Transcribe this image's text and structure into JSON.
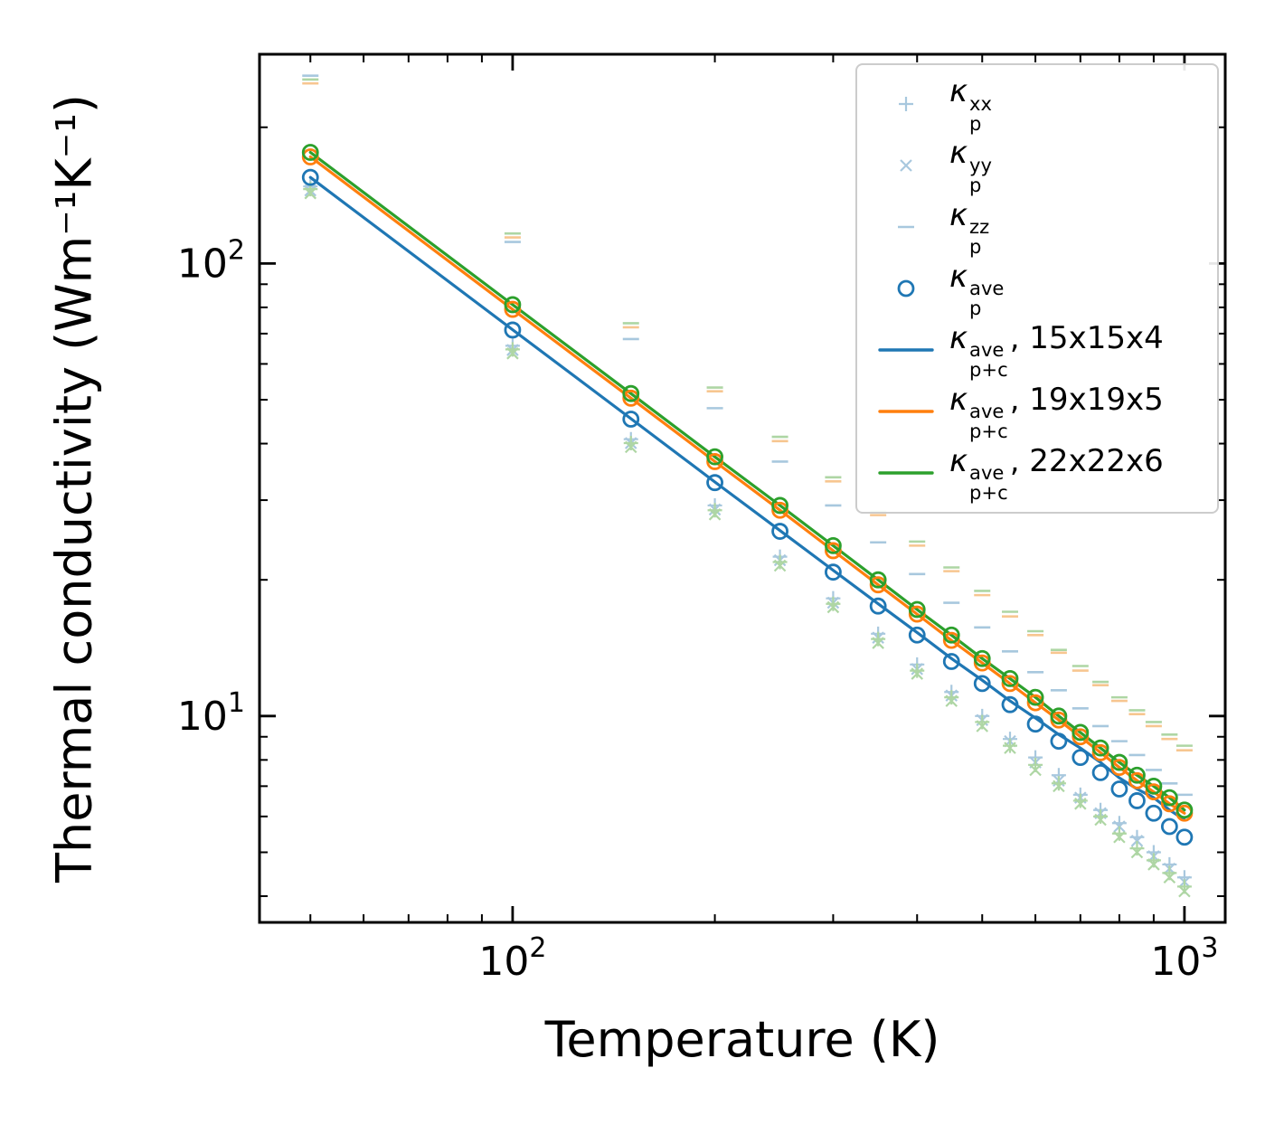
{
  "chart_data": {
    "type": "line",
    "title": "",
    "xlabel": "Temperature (K)",
    "ylabel": "Thermal conductivity (Wm⁻¹K⁻¹)",
    "xscale": "log",
    "yscale": "log",
    "xlim": [
      42,
      1150
    ],
    "ylim": [
      3.5,
      290
    ],
    "grid": false,
    "legend_position": "upper right",
    "x_major_ticks": [
      {
        "value": 100,
        "mantissa": "10",
        "exponent": "2"
      },
      {
        "value": 1000,
        "mantissa": "10",
        "exponent": "3"
      }
    ],
    "x_minor_ticks": [
      50,
      60,
      70,
      80,
      90,
      200,
      300,
      400,
      500,
      600,
      700,
      800,
      900
    ],
    "y_major_ticks": [
      {
        "value": 10,
        "mantissa": "10",
        "exponent": "1"
      },
      {
        "value": 100,
        "mantissa": "10",
        "exponent": "2"
      }
    ],
    "y_minor_ticks": [
      4,
      5,
      6,
      7,
      8,
      9,
      20,
      30,
      40,
      50,
      60,
      70,
      80,
      90,
      200
    ],
    "temperatures": [
      50,
      100,
      150,
      200,
      250,
      300,
      350,
      400,
      450,
      500,
      550,
      600,
      650,
      700,
      750,
      800,
      850,
      900,
      950,
      1000
    ],
    "series": [
      {
        "name": "kappa-zz-15x15x4",
        "marker": "dash",
        "color": "#a8c8de",
        "values": [
          260,
          111.6,
          68.1,
          47.9,
          36.5,
          29.2,
          24.2,
          20.6,
          17.8,
          15.7,
          13.9,
          12.5,
          11.4,
          10.4,
          9.5,
          8.8,
          8.2,
          7.6,
          7.1,
          6.7
        ]
      },
      {
        "name": "kappa-zz-19x19x5",
        "marker": "dash",
        "color": "#f7c690",
        "values": [
          250,
          114.2,
          72.3,
          52.2,
          40.5,
          33.0,
          27.8,
          23.8,
          20.9,
          18.5,
          16.6,
          15.1,
          13.8,
          12.6,
          11.7,
          10.8,
          10.1,
          9.5,
          8.9,
          8.4
        ]
      },
      {
        "name": "kappa-zz-22x22x6",
        "marker": "dash",
        "color": "#aed6a4",
        "values": [
          255,
          116.5,
          73.8,
          53.2,
          41.4,
          33.7,
          28.3,
          24.3,
          21.3,
          18.9,
          17.0,
          15.4,
          14.0,
          12.9,
          11.9,
          11.0,
          10.3,
          9.7,
          9.1,
          8.6
        ]
      },
      {
        "name": "kappa-xx-15x15x4",
        "marker": "plus",
        "color": "#a8c8de",
        "values": [
          148,
          65.8,
          40.9,
          29.2,
          22.5,
          18.2,
          15.2,
          13.0,
          11.3,
          10.0,
          8.9,
          8.1,
          7.4,
          6.7,
          6.2,
          5.8,
          5.4,
          5.0,
          4.7,
          4.4
        ]
      },
      {
        "name": "kappa-yy-15x15x4",
        "marker": "cross",
        "color": "#a8c8de",
        "values": [
          145,
          64.4,
          40.1,
          28.6,
          22.1,
          17.8,
          14.9,
          12.7,
          11.1,
          9.8,
          8.8,
          7.9,
          7.2,
          6.6,
          6.1,
          5.7,
          5.3,
          4.9,
          4.6,
          4.3
        ]
      },
      {
        "name": "kappa-xx-22x22x6",
        "marker": "plus",
        "color": "#aed6a4",
        "values": [
          146,
          64.6,
          40.1,
          28.5,
          21.9,
          17.7,
          14.8,
          12.6,
          11.0,
          9.7,
          8.6,
          7.8,
          7.1,
          6.5,
          6.0,
          5.5,
          5.1,
          4.8,
          4.5,
          4.2
        ]
      },
      {
        "name": "kappa-yy-22x22x6",
        "marker": "cross",
        "color": "#aed6a4",
        "values": [
          143,
          63.3,
          39.3,
          27.9,
          21.5,
          17.4,
          14.5,
          12.4,
          10.8,
          9.5,
          8.5,
          7.6,
          7.0,
          6.4,
          5.9,
          5.4,
          5.0,
          4.7,
          4.4,
          4.1
        ]
      },
      {
        "name": "kappa-p-plus-c-ave-15x15x4",
        "marker": "line",
        "color": "#1f77b4",
        "values": [
          155.0,
          71.4,
          45.4,
          32.9,
          25.7,
          21.0,
          17.7,
          15.3,
          13.4,
          12.0,
          10.8,
          9.9,
          9.1,
          8.5,
          7.9,
          7.3,
          6.9,
          6.6,
          6.2,
          5.9
        ]
      },
      {
        "name": "kappa-p-plus-c-ave-19x19x5",
        "marker": "line",
        "color": "#ff7f0e",
        "values": [
          172,
          79.2,
          50.4,
          36.5,
          28.5,
          23.2,
          19.5,
          16.8,
          14.7,
          13.1,
          11.8,
          10.7,
          9.8,
          9.0,
          8.3,
          7.7,
          7.2,
          6.8,
          6.4,
          6.1
        ]
      },
      {
        "name": "kappa-p-plus-c-ave-22x22x6",
        "marker": "line",
        "color": "#2ca02c",
        "values": [
          176,
          81.1,
          51.6,
          37.4,
          29.2,
          23.8,
          20.0,
          17.2,
          15.1,
          13.4,
          12.1,
          11.0,
          10.0,
          9.2,
          8.5,
          7.9,
          7.4,
          7.0,
          6.6,
          6.2
        ]
      },
      {
        "name": "kappa-ave-19x19x5",
        "marker": "circle",
        "color": "#ff7f0e",
        "values": [
          172,
          79.2,
          50.4,
          36.5,
          28.5,
          23.2,
          19.5,
          16.8,
          14.7,
          13.1,
          11.8,
          10.7,
          9.8,
          9.0,
          8.3,
          7.7,
          7.2,
          6.8,
          6.4,
          6.1
        ]
      },
      {
        "name": "kappa-ave-22x22x6",
        "marker": "circle",
        "color": "#2ca02c",
        "values": [
          176,
          81.1,
          51.6,
          37.4,
          29.2,
          23.8,
          20.0,
          17.2,
          15.1,
          13.4,
          12.1,
          11.0,
          10.0,
          9.2,
          8.5,
          7.9,
          7.4,
          7.0,
          6.6,
          6.2
        ]
      },
      {
        "name": "kappa-ave-15x15x4",
        "marker": "circle",
        "color": "#1f77b4",
        "values": [
          155.0,
          71.3,
          45.3,
          32.8,
          25.6,
          20.8,
          17.5,
          15.1,
          13.2,
          11.8,
          10.6,
          9.6,
          8.8,
          8.1,
          7.5,
          6.9,
          6.5,
          6.1,
          5.7,
          5.4
        ]
      }
    ],
    "legend": {
      "entries": [
        {
          "symbol": "plus",
          "color": "#a8c8de",
          "base": "κ",
          "sup": "xx",
          "sub": "p",
          "suffix": ""
        },
        {
          "symbol": "cross",
          "color": "#a8c8de",
          "base": "κ",
          "sup": "yy",
          "sub": "p",
          "suffix": ""
        },
        {
          "symbol": "dash",
          "color": "#a8c8de",
          "base": "κ",
          "sup": "zz",
          "sub": "p",
          "suffix": ""
        },
        {
          "symbol": "circle",
          "color": "#1f77b4",
          "base": "κ",
          "sup": "ave",
          "sub": "p",
          "suffix": ""
        },
        {
          "symbol": "line",
          "color": "#1f77b4",
          "base": "κ",
          "sup": "ave",
          "sub": "p+c",
          "suffix": ", 15x15x4"
        },
        {
          "symbol": "line",
          "color": "#ff7f0e",
          "base": "κ",
          "sup": "ave",
          "sub": "p+c",
          "suffix": ", 19x19x5"
        },
        {
          "symbol": "line",
          "color": "#2ca02c",
          "base": "κ",
          "sup": "ave",
          "sub": "p+c",
          "suffix": ", 22x22x6"
        }
      ]
    },
    "colors": {
      "blue": "#1f77b4",
      "orange": "#ff7f0e",
      "green": "#2ca02c",
      "pale_blue": "#a8c8de",
      "pale_orange": "#f7c690",
      "pale_green": "#aed6a4",
      "axis": "#000000"
    }
  }
}
